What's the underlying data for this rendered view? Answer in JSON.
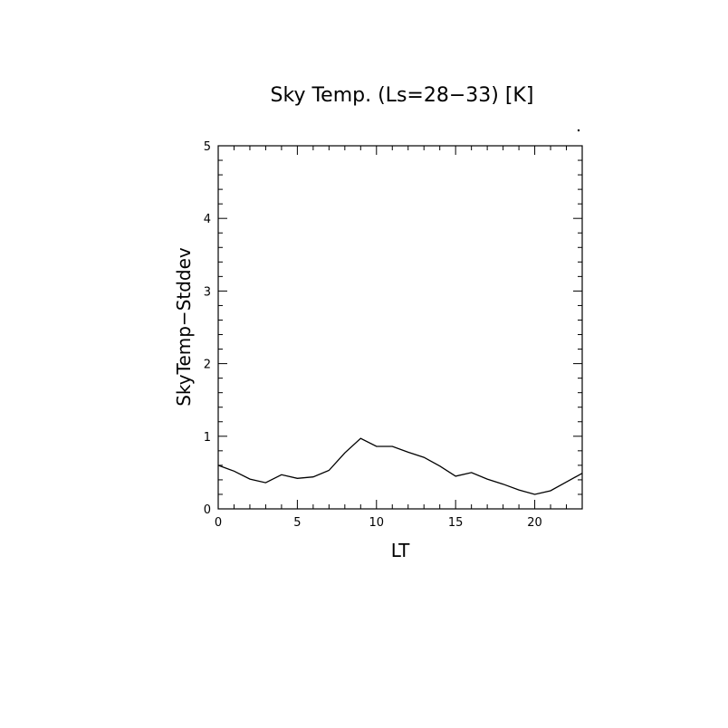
{
  "chart_data": {
    "type": "line",
    "title": "Sky Temp. (Ls=28−33) [K]",
    "xlabel": "LT",
    "ylabel": "SkyTemp−Stddev",
    "xlim": [
      0,
      23
    ],
    "ylim": [
      0,
      5
    ],
    "xticks": [
      0,
      5,
      10,
      15,
      20
    ],
    "yticks": [
      0,
      1,
      2,
      3,
      4,
      5
    ],
    "grid": false,
    "series": [
      {
        "x": [
          0,
          1,
          2,
          3,
          4,
          5,
          6,
          7,
          8,
          9,
          10,
          11,
          12,
          13,
          14,
          15,
          16,
          17,
          18,
          19,
          20,
          21,
          22,
          23
        ],
        "values": [
          0.6,
          0.52,
          0.41,
          0.36,
          0.47,
          0.42,
          0.44,
          0.53,
          0.77,
          0.97,
          0.86,
          0.86,
          0.78,
          0.71,
          0.59,
          0.45,
          0.5,
          0.41,
          0.34,
          0.26,
          0.2,
          0.25,
          0.37,
          0.49
        ]
      }
    ]
  }
}
